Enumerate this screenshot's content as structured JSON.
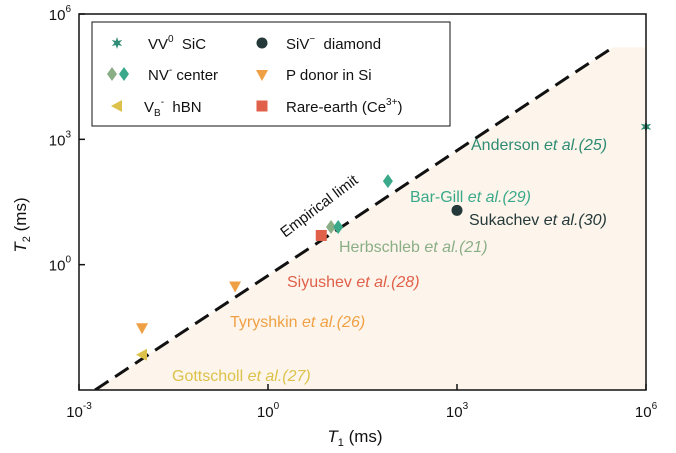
{
  "chart_data": {
    "type": "scatter",
    "title": "",
    "x_scale": "log",
    "y_scale": "log",
    "xlim": [
      0.001,
      1000000
    ],
    "ylim": [
      0.001,
      1000000
    ],
    "grid": false,
    "legend_position": "top-left",
    "xlabel": {
      "main": "T",
      "sub": "1",
      "unit": " (ms)"
    },
    "ylabel": {
      "main": "T",
      "sub": "2",
      "unit": " (ms)"
    },
    "x_ticks": [
      {
        "value": 0.001,
        "base": "10",
        "exp": "-3"
      },
      {
        "value": 1,
        "base": "10",
        "exp": "0"
      },
      {
        "value": 1000,
        "base": "10",
        "exp": "3"
      },
      {
        "value": 1000000,
        "base": "10",
        "exp": "6"
      }
    ],
    "y_ticks": [
      {
        "value": 1,
        "base": "10",
        "exp": "0"
      },
      {
        "value": 1000,
        "base": "10",
        "exp": "3"
      },
      {
        "value": 1000000,
        "base": "10",
        "exp": "6"
      }
    ],
    "limit_line": {
      "label": "Empirical limit",
      "points": [
        [
          0.0018,
          0.001
        ],
        [
          300000,
          160000
        ]
      ]
    },
    "region_color": "#fdf5eb",
    "series": [
      {
        "name_main": "VV",
        "name_sup": "0",
        "name_rest": "  SiC",
        "marker": "star",
        "color": "#2e8b74",
        "points": [
          {
            "x": 1000000,
            "y": 2000
          }
        ]
      },
      {
        "name_main": "SiV",
        "name_sup": "−",
        "name_rest": "  diamond",
        "marker": "circle",
        "color": "#25393a",
        "points": [
          {
            "x": 1000,
            "y": 20
          }
        ]
      },
      {
        "name_main": "NV",
        "name_sup": "-",
        "name_rest": " center",
        "marker": "diamond",
        "color": "#3aa98a",
        "color_alt": "#8aae86",
        "points": [
          {
            "x": 80,
            "y": 100
          },
          {
            "x": 10,
            "y": 8
          },
          {
            "x": 13,
            "y": 8
          }
        ]
      },
      {
        "name_main": "P donor in Si",
        "name_sup": "",
        "name_rest": "",
        "marker": "triangle-down",
        "color": "#f0a044",
        "points": [
          {
            "x": 0.3,
            "y": 0.3
          },
          {
            "x": 0.01,
            "y": 0.03
          }
        ]
      },
      {
        "name_main": "V",
        "name_sub": "B",
        "name_sup": "-",
        "name_rest": "  hBN",
        "marker": "triangle-left",
        "color": "#dcc24a",
        "points": [
          {
            "x": 0.01,
            "y": 0.007
          }
        ]
      },
      {
        "name_main": "Rare-earth (Ce",
        "name_sup": "3+",
        "name_rest": ")",
        "marker": "square",
        "color": "#e0604a",
        "points": [
          {
            "x": 7,
            "y": 5
          }
        ]
      }
    ],
    "annotations": [
      {
        "author": "Anderson",
        "etal": "et al.",
        "ref": "(25)",
        "color": "#2e8b74"
      },
      {
        "author": "Bar-Gill",
        "etal": "et al.",
        "ref": "(29)",
        "color": "#3aa98a"
      },
      {
        "author": "Sukachev",
        "etal": "et al.",
        "ref": "(30)",
        "color": "#25393a"
      },
      {
        "author": "Herbschleb",
        "etal": "et al.",
        "ref": "(21)",
        "color": "#8aae86"
      },
      {
        "author": "Siyushev",
        "etal": "et al.",
        "ref": "(28)",
        "color": "#e0604a"
      },
      {
        "author": "Tyryshkin",
        "etal": "et al.",
        "ref": "(26)",
        "color": "#f0a044"
      },
      {
        "author": "Gottscholl",
        "etal": "et al.",
        "ref": "(27)",
        "color": "#dcc24a"
      }
    ]
  }
}
